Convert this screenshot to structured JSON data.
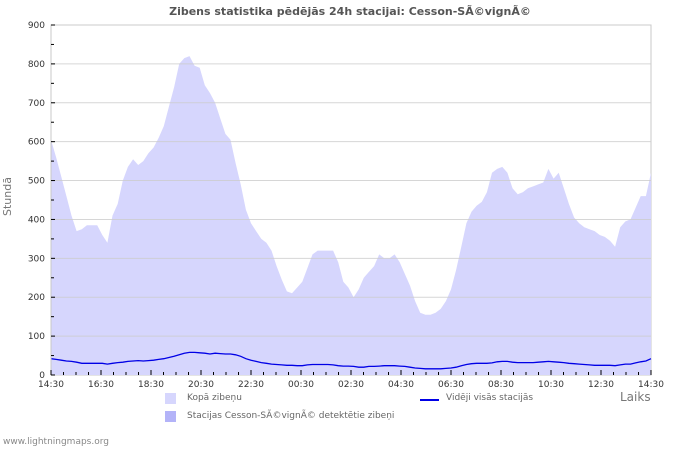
{
  "title": "Zibens statistika pēdējās 24h stacijai: Cesson-SÃ©vignÃ©",
  "y_axis_label": "Stundā",
  "x_axis_label": "Laiks",
  "footer": "www.lightningmaps.org",
  "legend": {
    "total": "Kopā zibeņu",
    "station": "Stacijas Cesson-SÃ©vignÃ© detektētie zibeņi",
    "average": "Vidēji visās stacijās"
  },
  "colors": {
    "total_fill": "#d6d6fd",
    "station_fill": "#b3b3f8",
    "average_line": "#0000e6",
    "grid": "#cccccc"
  },
  "chart_data": {
    "type": "area",
    "title": "Zibens statistika pēdējās 24h stacijai: Cesson-SÃ©vignÃ©",
    "xlabel": "Laiks",
    "ylabel": "Stundā",
    "ylim": [
      0,
      900
    ],
    "yticks": [
      0,
      100,
      200,
      300,
      400,
      500,
      600,
      700,
      800,
      900
    ],
    "xticks": [
      "14:30",
      "16:30",
      "18:30",
      "20:30",
      "22:30",
      "00:30",
      "02:30",
      "04:30",
      "06:30",
      "08:30",
      "10:30",
      "12:30",
      "14:30"
    ],
    "grid": true,
    "legend_position": "bottom",
    "series": [
      {
        "name": "Kopā zibeņu",
        "kind": "area",
        "values": [
          605,
          560,
          510,
          460,
          410,
          370,
          375,
          385,
          385,
          385,
          360,
          340,
          410,
          440,
          500,
          535,
          555,
          540,
          550,
          570,
          585,
          610,
          640,
          690,
          740,
          800,
          815,
          820,
          795,
          790,
          745,
          725,
          700,
          660,
          620,
          605,
          545,
          490,
          425,
          390,
          370,
          350,
          340,
          320,
          280,
          245,
          215,
          210,
          225,
          240,
          275,
          310,
          320,
          320,
          320,
          320,
          290,
          240,
          225,
          200,
          220,
          250,
          265,
          280,
          310,
          300,
          300,
          310,
          290,
          260,
          230,
          190,
          160,
          155,
          155,
          160,
          170,
          190,
          220,
          270,
          330,
          390,
          420,
          435,
          445,
          470,
          520,
          530,
          535,
          520,
          480,
          465,
          470,
          480,
          485,
          490,
          495,
          530,
          505,
          520,
          480,
          440,
          405,
          390,
          380,
          375,
          370,
          360,
          355,
          345,
          330,
          380,
          395,
          400,
          430,
          460,
          460,
          520
        ],
        "note": "approx. 5-minute sampling from 14:30 to 14:30"
      },
      {
        "name": "Stacijas Cesson-SÃ©vignÃ© detektētie zibeņi",
        "kind": "area",
        "values": []
      },
      {
        "name": "Vidēji visās stacijās",
        "kind": "line",
        "values": [
          42,
          40,
          38,
          36,
          35,
          33,
          30,
          30,
          30,
          30,
          30,
          28,
          30,
          32,
          33,
          35,
          36,
          37,
          36,
          37,
          38,
          40,
          42,
          45,
          48,
          52,
          56,
          58,
          58,
          57,
          56,
          54,
          56,
          55,
          54,
          54,
          52,
          48,
          42,
          38,
          35,
          32,
          30,
          28,
          27,
          26,
          25,
          25,
          24,
          24,
          26,
          27,
          27,
          27,
          27,
          26,
          24,
          23,
          23,
          22,
          20,
          20,
          22,
          22,
          23,
          24,
          24,
          24,
          23,
          22,
          20,
          18,
          17,
          16,
          16,
          16,
          16,
          17,
          18,
          20,
          24,
          27,
          29,
          30,
          30,
          30,
          31,
          34,
          35,
          35,
          33,
          32,
          32,
          32,
          32,
          33,
          34,
          35,
          34,
          33,
          32,
          30,
          29,
          28,
          27,
          26,
          25,
          25,
          25,
          25,
          24,
          26,
          28,
          28,
          31,
          34,
          36,
          42
        ]
      }
    ]
  }
}
